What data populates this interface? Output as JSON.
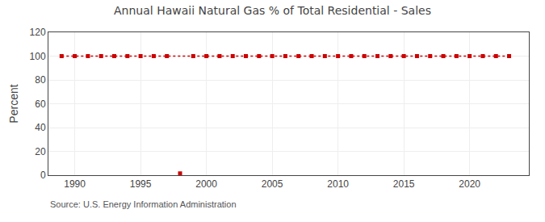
{
  "chart_data": {
    "type": "line",
    "title": "Annual Hawaii Natural Gas % of Total Residential - Sales",
    "ylabel": "Percent",
    "source": "Source: U.S. Energy Information Administration",
    "series": [
      {
        "type": "line",
        "color": "#cc0000",
        "marker": "square",
        "line_style": "dotted",
        "x": [
          1989,
          1990,
          1991,
          1992,
          1993,
          1994,
          1995,
          1996,
          1997,
          1999,
          2000,
          2001,
          2002,
          2003,
          2004,
          2005,
          2006,
          2007,
          2008,
          2009,
          2010,
          2011,
          2012,
          2013,
          2014,
          2015,
          2016,
          2017,
          2018,
          2019,
          2020,
          2021,
          2022,
          2023
        ],
        "values": [
          100,
          100,
          100,
          100,
          100,
          100,
          100,
          100,
          100,
          100,
          100,
          100,
          100,
          100,
          100,
          100,
          100,
          100,
          100,
          100,
          100,
          100,
          100,
          100,
          100,
          100,
          100,
          100,
          100,
          100,
          100,
          100,
          100,
          100
        ]
      },
      {
        "type": "scatter",
        "color": "#cc0000",
        "marker": "square",
        "x": [
          1998
        ],
        "values": [
          1.5
        ]
      }
    ],
    "xlim": [
      1988.0,
      2024.5
    ],
    "ylim": [
      0,
      120
    ],
    "xticks": [
      1990,
      1995,
      2000,
      2005,
      2010,
      2015,
      2020
    ],
    "yticks": [
      0,
      20,
      40,
      60,
      80,
      100,
      120
    ],
    "grid": true
  }
}
